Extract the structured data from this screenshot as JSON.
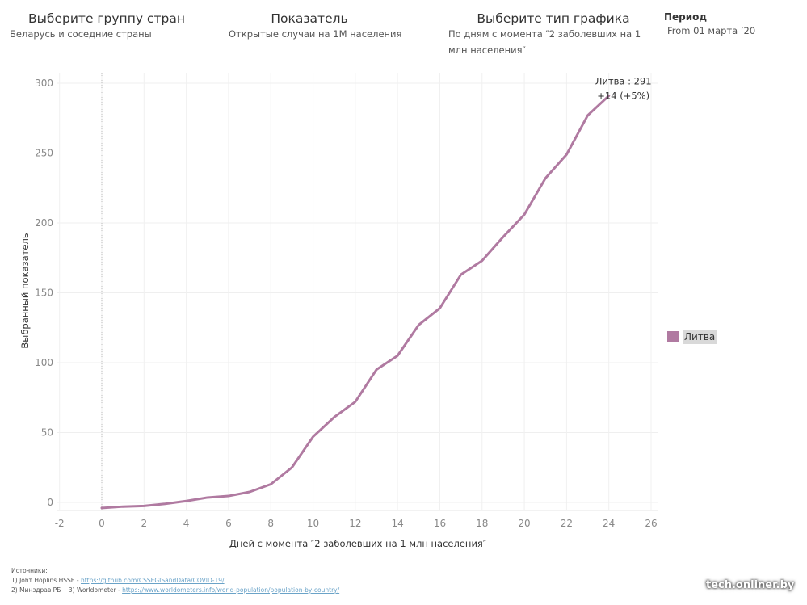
{
  "filters": {
    "country_group": {
      "title": "Выберите группу стран",
      "value": "Беларусь и соседние страны"
    },
    "indicator": {
      "title": "Показатель",
      "value": "Открытые случаи на 1М населения"
    },
    "chart_type": {
      "title": "Выберите тип графика",
      "value": "По дням с момента ″2 заболевших на 1 млн населения″"
    },
    "period": {
      "title": "Период",
      "value": "From 01 марта ’20"
    }
  },
  "legend": [
    {
      "label": "Литва",
      "color": "#b07aa1"
    }
  ],
  "sources": {
    "heading": "Источники:",
    "line1_prefix": "1) Johт Hoplins HSSE - ",
    "line1_link": "https://github.com/CSSEGISandData/COVID-19/",
    "line2_prefix": "2) Минздрав РБ    3) Worldometer - ",
    "line2_link": "https://www.worldometers.info/world-population/population-by-country/"
  },
  "watermark": "tech.onliner.by",
  "chart_data": {
    "type": "line",
    "title": "",
    "xlabel": "Дней с момента ″2 заболевших на 1 млн населения″",
    "ylabel": "Выбранный показатель",
    "xlim": [
      -2,
      26
    ],
    "ylim": [
      -5,
      305
    ],
    "xticks": [
      -2,
      0,
      2,
      4,
      6,
      8,
      10,
      12,
      14,
      16,
      18,
      20,
      22,
      24,
      26
    ],
    "yticks": [
      0,
      50,
      100,
      150,
      200,
      250,
      300
    ],
    "grid": true,
    "reference_line_x": 0,
    "legend_position": "right",
    "x": [
      0,
      1,
      2,
      3,
      4,
      5,
      6,
      7,
      8,
      9,
      10,
      11,
      12,
      13,
      14,
      15,
      16,
      17,
      18,
      19,
      20,
      21,
      22,
      23,
      24
    ],
    "series": [
      {
        "name": "Литва",
        "color": "#b07aa1",
        "values": [
          -4,
          -3,
          -2.5,
          -1,
          1,
          3.5,
          4.6,
          7.5,
          13,
          25,
          47,
          61,
          72,
          95,
          105,
          127,
          139,
          163,
          173,
          190,
          206,
          232,
          249,
          277,
          291
        ]
      }
    ],
    "annotation": {
      "line1": "Литва : 291",
      "line2": "+14 (+5%)",
      "x": 24,
      "y": 291
    }
  }
}
